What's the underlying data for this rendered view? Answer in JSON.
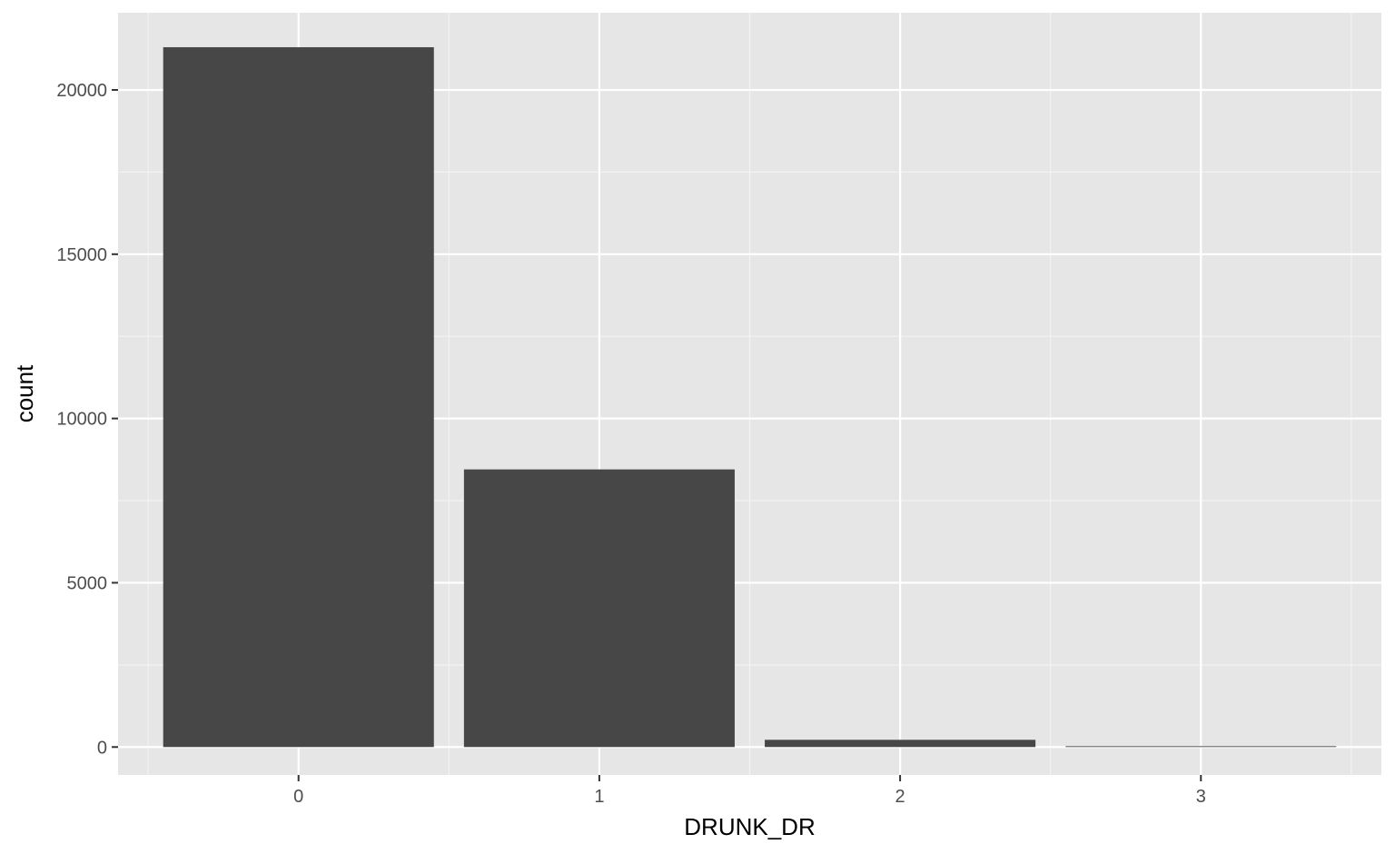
{
  "chart_data": {
    "type": "bar",
    "title": "",
    "xlabel": "DRUNK_DR",
    "ylabel": "count",
    "categories": [
      "0",
      "1",
      "2",
      "3"
    ],
    "values": [
      21300,
      8450,
      220,
      25
    ],
    "ylim": [
      -850,
      22350
    ],
    "yticks": [
      0,
      5000,
      10000,
      15000,
      20000
    ],
    "ytick_labels": [
      "0",
      "5000",
      "10000",
      "15000",
      "20000"
    ],
    "grid": true,
    "legend": "none",
    "colors": {
      "panel_background": "#e6e6e6",
      "grid_major": "#ffffff",
      "grid_minor": "#f2f2f2",
      "bar_fill": "#474747",
      "tick_mark": "#333333"
    }
  }
}
